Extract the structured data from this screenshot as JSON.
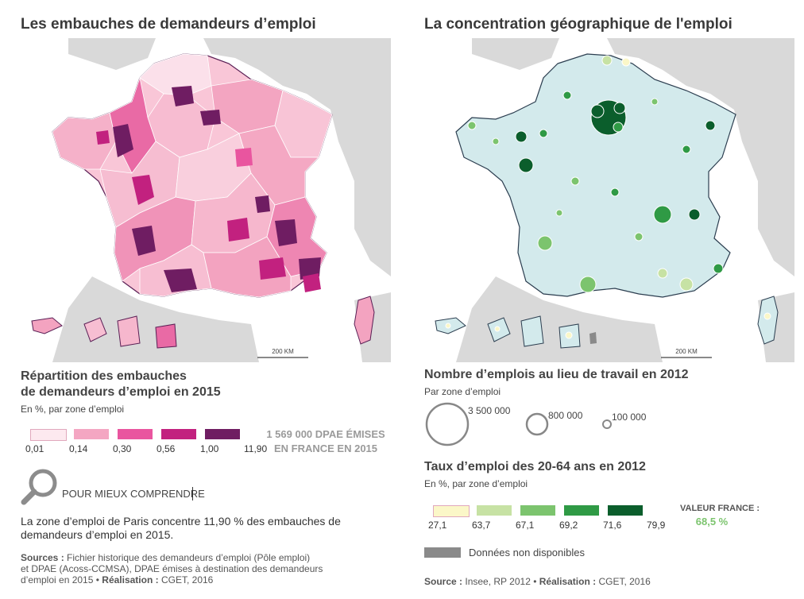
{
  "left": {
    "title": "Les embauches de demandeurs d’emploi",
    "scale_label": "200 KM",
    "legend_title_1": "Répartition des embauches",
    "legend_title_2": "de demandeurs d’emploi en 2015",
    "legend_subtitle": "En %, par zone d’emploi",
    "legend_ticks": [
      "0,01",
      "0,14",
      "0,30",
      "0,56",
      "1,00",
      "11,90"
    ],
    "legend_colors": [
      "#fde9ef",
      "#f4a6c2",
      "#e9559f",
      "#c2217f",
      "#6f1d62"
    ],
    "total_line_1": "1 569 000 DPAE ÉMISES",
    "total_line_2": "EN FRANCE EN 2015",
    "understand_label": "POUR MIEUX COMPRENDRE",
    "explanation_1": "La zone d’emploi de Paris concentre 11,90 % des embauches de",
    "explanation_2": "demandeurs d’emploi en 2015.",
    "source_1_bold": "Sources :",
    "source_1": "Fichier historique des demandeurs d’emploi (Pôle emploi)",
    "source_2": "et DPAE (Acoss-CCMSA), DPAE émises à destination des demandeurs",
    "source_3": "d’emploi en 2015 •",
    "source_3_bold": "Réalisation :",
    "source_3_end": "CGET, 2016"
  },
  "right": {
    "title": "La concentration géographique de l'emploi",
    "scale_label": "200 KM",
    "size_title": "Nombre d’emplois au lieu de travail en 2012",
    "size_subtitle": "Par zone d’emploi",
    "size_values": [
      "3 500 000",
      "800 000",
      "100 000"
    ],
    "rate_title": "Taux d’emploi des 20-64 ans en 2012",
    "rate_subtitle": "En %, par zone d’emploi",
    "rate_ticks": [
      "27,1",
      "63,7",
      "67,1",
      "69,2",
      "71,6",
      "79,9"
    ],
    "rate_colors": [
      "#fbf7c8",
      "#c7e2a4",
      "#7cc46e",
      "#2f9a45",
      "#0b5e2c"
    ],
    "france_label": "VALEUR FRANCE :",
    "france_value": "68,5 %",
    "na_label": "Données non disponibles",
    "na_color": "#8a8a8a",
    "source_bold": "Source :",
    "source_text": "Insee, RP 2012 •",
    "source_bold_2": "Réalisation :",
    "source_end": "CGET, 2016"
  }
}
